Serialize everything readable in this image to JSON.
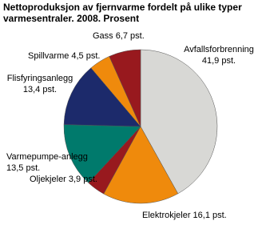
{
  "chart_data": {
    "type": "pie",
    "title": "Nettoproduksjon av fjernvarme fordelt på ulike typer varmesentraler. 2008. Prosent",
    "categories": [
      "Avfallsforbrenning",
      "Elektrokjeler",
      "Oljekjeler",
      "Varmepumpe-anlegg",
      "Flisfyringsanlegg",
      "Spillvarme",
      "Gass"
    ],
    "values": [
      41.9,
      16.1,
      3.9,
      13.5,
      13.4,
      4.5,
      6.7
    ],
    "value_labels": [
      "41,9 pst.",
      "16,1 pst.",
      "3,9 pst.",
      "13,5 pst.",
      "13,4 pst.",
      "4,5 pst.",
      "6,7 pst."
    ],
    "colors": [
      "#d8d8d5",
      "#ef8a0c",
      "#98191e",
      "#007a6c",
      "#1c2a6b",
      "#ef8a0c",
      "#98191e"
    ]
  }
}
